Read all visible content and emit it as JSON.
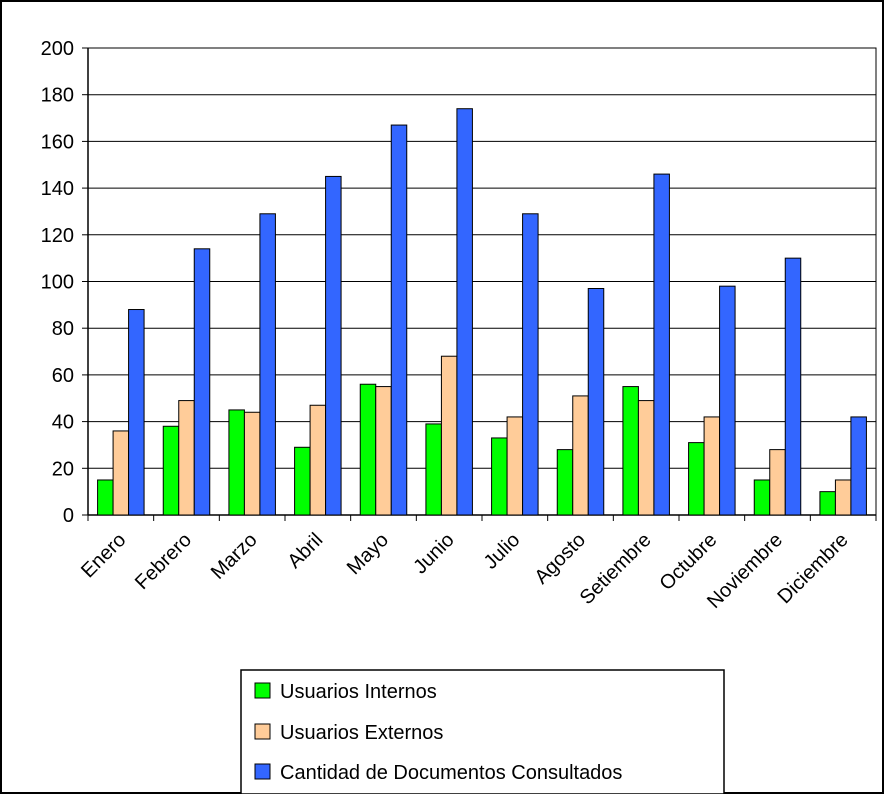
{
  "chart_data": {
    "type": "bar",
    "categories": [
      "Enero",
      "Febrero",
      "Marzo",
      "Abril",
      "Mayo",
      "Junio",
      "Julio",
      "Agosto",
      "Setiembre",
      "Octubre",
      "Noviembre",
      "Diciembre"
    ],
    "series": [
      {
        "name": "Usuarios Internos",
        "color": "#00ff00",
        "values": [
          15,
          38,
          45,
          29,
          56,
          39,
          33,
          28,
          55,
          31,
          15,
          10
        ]
      },
      {
        "name": "Usuarios Externos",
        "color": "#ffcc99",
        "values": [
          36,
          49,
          44,
          47,
          55,
          68,
          42,
          51,
          49,
          42,
          28,
          15
        ]
      },
      {
        "name": "Cantidad de Documentos Consultados",
        "color": "#3366ff",
        "values": [
          88,
          114,
          129,
          145,
          167,
          174,
          129,
          97,
          146,
          98,
          110,
          42
        ]
      }
    ],
    "ylim": [
      0,
      200
    ],
    "yticks": [
      "0",
      "20",
      "40",
      "60",
      "80",
      "100",
      "120",
      "140",
      "160",
      "180",
      "200"
    ],
    "grid": true,
    "legend_position": "bottom"
  }
}
